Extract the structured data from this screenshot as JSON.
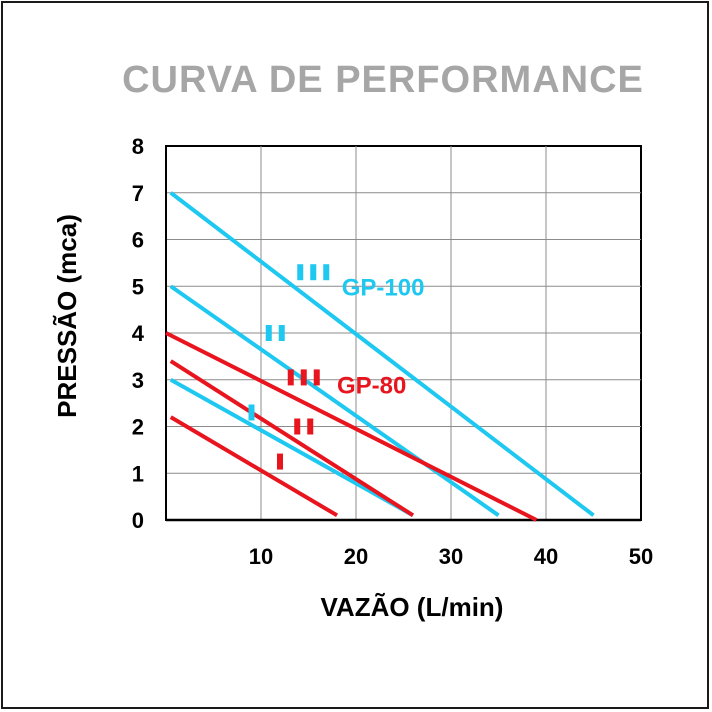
{
  "chart_data": {
    "type": "line",
    "title": "CURVA DE PERFORMANCE",
    "xlabel": "VAZÃO (L/min)",
    "ylabel": "PRESSÃO (mca)",
    "xlim": [
      0,
      50
    ],
    "ylim": [
      0,
      8
    ],
    "x_ticks": [
      10,
      20,
      30,
      40,
      50
    ],
    "y_ticks": [
      0,
      1,
      2,
      3,
      4,
      5,
      6,
      7,
      8
    ],
    "grid": true,
    "colors": {
      "GP-100": "#1ec8f0",
      "GP-80": "#e8141e"
    },
    "series": [
      {
        "model": "GP-100",
        "stage": "III",
        "x": [
          0.5,
          45
        ],
        "y": [
          7.0,
          0.1
        ],
        "color": "#1ec8f0"
      },
      {
        "model": "GP-100",
        "stage": "II",
        "x": [
          0.5,
          35
        ],
        "y": [
          5.0,
          0.1
        ],
        "color": "#1ec8f0"
      },
      {
        "model": "GP-100",
        "stage": "I",
        "x": [
          0.5,
          26
        ],
        "y": [
          3.0,
          0.1
        ],
        "color": "#1ec8f0"
      },
      {
        "model": "GP-80",
        "stage": "III",
        "x": [
          0,
          39
        ],
        "y": [
          4.0,
          0.0
        ],
        "color": "#e8141e"
      },
      {
        "model": "GP-80",
        "stage": "II",
        "x": [
          0.5,
          26
        ],
        "y": [
          3.4,
          0.1
        ],
        "color": "#e8141e"
      },
      {
        "model": "GP-80",
        "stage": "I",
        "x": [
          0.5,
          18
        ],
        "y": [
          2.2,
          0.1
        ],
        "color": "#e8141e"
      }
    ],
    "model_labels": [
      {
        "text": "GP-100",
        "x": 18.5,
        "y": 5.0,
        "color": "#1ec8f0"
      },
      {
        "text": "GP-80",
        "x": 18.0,
        "y": 2.9,
        "color": "#e8141e"
      }
    ],
    "stage_markers": [
      {
        "bars": 3,
        "x": 15.5,
        "y": 5.3,
        "color": "#1ec8f0"
      },
      {
        "bars": 2,
        "x": 11.5,
        "y": 4.0,
        "color": "#1ec8f0"
      },
      {
        "bars": 1,
        "x": 9.0,
        "y": 2.3,
        "color": "#1ec8f0"
      },
      {
        "bars": 3,
        "x": 14.5,
        "y": 3.05,
        "color": "#e8141e"
      },
      {
        "bars": 2,
        "x": 14.5,
        "y": 2.0,
        "color": "#e8141e"
      },
      {
        "bars": 1,
        "x": 12.0,
        "y": 1.25,
        "color": "#e8141e"
      }
    ]
  }
}
